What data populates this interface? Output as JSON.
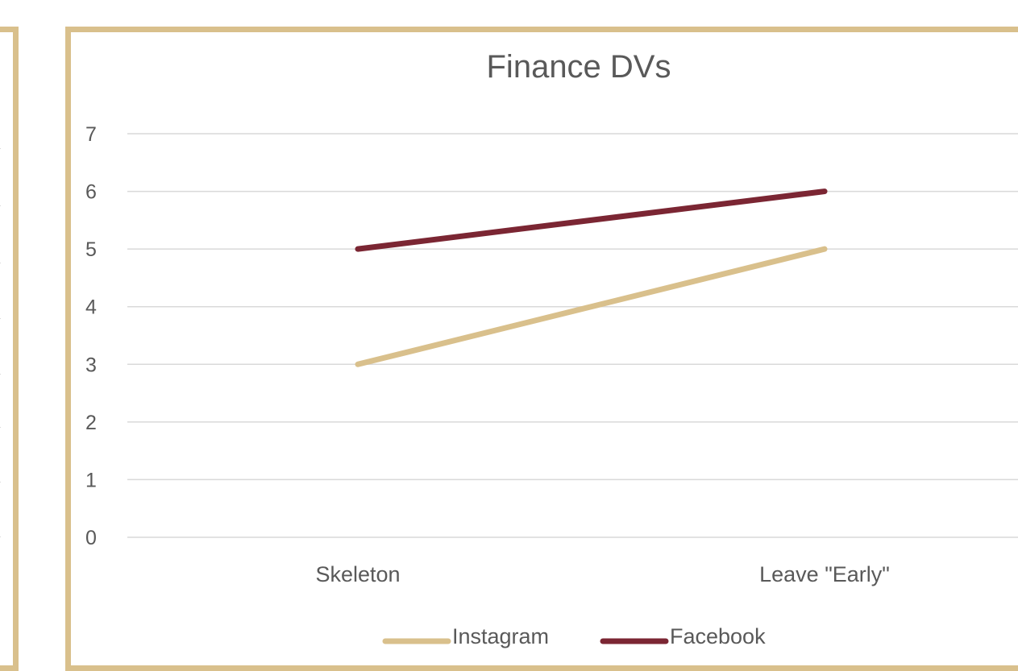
{
  "chart_data": {
    "type": "line",
    "title": "Finance DVs",
    "categories": [
      "Skeleton",
      "Leave \"Early\""
    ],
    "series": [
      {
        "name": "Instagram",
        "values": [
          3,
          5
        ],
        "color": "#d9c08c"
      },
      {
        "name": "Facebook",
        "values": [
          5,
          6
        ],
        "color": "#7b2633"
      }
    ],
    "ylim": [
      0,
      7
    ],
    "yticks": [
      "0",
      "1",
      "2",
      "3",
      "4",
      "5",
      "6",
      "7"
    ],
    "grid": true,
    "legend_position": "bottom"
  },
  "colors": {
    "frame": "#d9c08c",
    "gridline": "#d9d9d9",
    "text": "#595959"
  }
}
